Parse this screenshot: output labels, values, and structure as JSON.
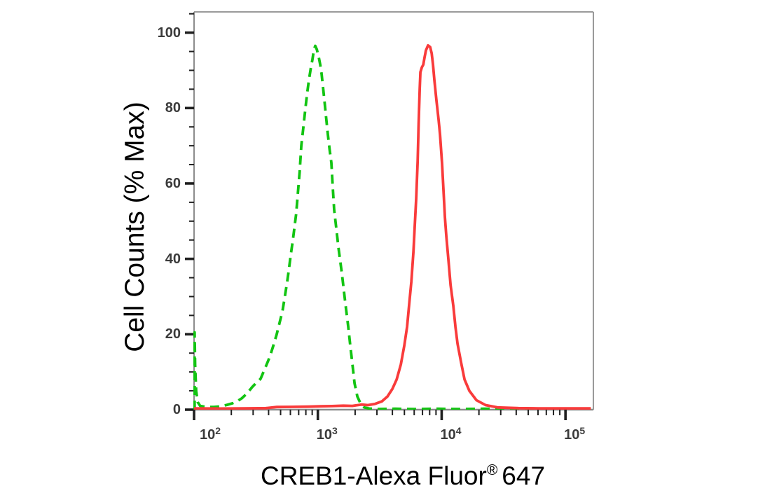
{
  "figure": {
    "background": "#ffffff",
    "frame_color": "#9a9a9a",
    "axis_line_color": "#8c8c8c",
    "tick_color": "#1f1f1f",
    "tick_label_color": "#3b3b3b",
    "title_color": "#000000"
  },
  "chart_data": {
    "type": "line",
    "subtype": "flow-cytometry-overlay-histogram",
    "title": "",
    "xlabel": "CREB1-Alexa Fluor® 647",
    "xlabel_parts": {
      "pre": "CREB1-Alexa Fluor",
      "registered": "®",
      "post": "647"
    },
    "ylabel": "Cell Counts (% Max)",
    "x_scale": "log",
    "xlim": [
      100,
      168000
    ],
    "ylim": [
      0,
      105.5
    ],
    "grid": false,
    "legend": "none",
    "x_ticks": [
      {
        "value": 100,
        "base": "10",
        "exp": "2"
      },
      {
        "value": 1000,
        "base": "10",
        "exp": "3"
      },
      {
        "value": 10000,
        "base": "10",
        "exp": "4"
      },
      {
        "value": 100000,
        "base": "10",
        "exp": "5"
      }
    ],
    "x_minor_mantissas": [
      2,
      3,
      4,
      5,
      6,
      7,
      8,
      9
    ],
    "y_ticks": [
      0,
      20,
      40,
      60,
      80,
      100
    ],
    "y_minor_step": 5,
    "series": [
      {
        "name": "green-dashed-histogram",
        "color": "#12c412",
        "style": "dashed",
        "line_width": 3.8,
        "dash": [
          13,
          8
        ],
        "peak": {
          "x": 950,
          "y": 96.5
        },
        "points": [
          [
            101,
            0
          ],
          [
            101,
            20.5
          ],
          [
            102,
            12
          ],
          [
            104,
            5
          ],
          [
            107,
            2
          ],
          [
            112,
            1
          ],
          [
            125,
            0.7
          ],
          [
            145,
            0.7
          ],
          [
            165,
            0.9
          ],
          [
            186,
            1.3
          ],
          [
            205,
            1.7
          ],
          [
            225,
            2.3
          ],
          [
            243,
            3
          ],
          [
            268,
            4.3
          ],
          [
            295,
            6
          ],
          [
            320,
            7.2
          ],
          [
            345,
            8.2
          ],
          [
            375,
            11
          ],
          [
            409,
            14
          ],
          [
            437,
            17
          ],
          [
            465,
            20
          ],
          [
            490,
            23
          ],
          [
            517,
            26
          ],
          [
            541,
            30
          ],
          [
            566,
            34
          ],
          [
            585,
            37.5
          ],
          [
            604,
            41
          ],
          [
            625,
            44.5
          ],
          [
            645,
            48
          ],
          [
            668,
            52
          ],
          [
            688,
            57
          ],
          [
            712,
            63
          ],
          [
            735,
            70
          ],
          [
            764,
            75
          ],
          [
            794,
            80
          ],
          [
            820,
            84
          ],
          [
            847,
            87.5
          ],
          [
            876,
            90.5
          ],
          [
            905,
            93
          ],
          [
            929,
            95.5
          ],
          [
            952,
            96.5
          ],
          [
            981,
            95.5
          ],
          [
            1017,
            93.5
          ],
          [
            1045,
            91.5
          ],
          [
            1072,
            89
          ],
          [
            1101,
            85.5
          ],
          [
            1130,
            82
          ],
          [
            1166,
            77.5
          ],
          [
            1205,
            73
          ],
          [
            1244,
            69
          ],
          [
            1286,
            65.5
          ],
          [
            1320,
            59
          ],
          [
            1355,
            53
          ],
          [
            1410,
            48
          ],
          [
            1466,
            43
          ],
          [
            1514,
            39.5
          ],
          [
            1564,
            36
          ],
          [
            1616,
            32
          ],
          [
            1670,
            28
          ],
          [
            1759,
            22
          ],
          [
            1828,
            17
          ],
          [
            1902,
            12
          ],
          [
            1978,
            7
          ],
          [
            2084,
            3.5
          ],
          [
            2223,
            1.5
          ],
          [
            2371,
            0.6
          ],
          [
            2600,
            0.3
          ],
          [
            3000,
            0.15
          ],
          [
            4200,
            0.25
          ],
          [
            6000,
            0.15
          ],
          [
            9000,
            0.25
          ],
          [
            14000,
            0.15
          ],
          [
            22000,
            0.25
          ],
          [
            35000,
            0.15
          ],
          [
            60000,
            0.25
          ],
          [
            100000,
            0.15
          ],
          [
            160000,
            0.2
          ]
        ]
      },
      {
        "name": "red-solid-histogram",
        "color": "#f93b3b",
        "style": "solid",
        "line_width": 3.8,
        "peak": {
          "x": 7800,
          "y": 96.6
        },
        "shoulder": {
          "x": 6800,
          "y": 91
        },
        "points": [
          [
            100,
            0.35
          ],
          [
            160,
            0.3
          ],
          [
            250,
            0.35
          ],
          [
            380,
            0.4
          ],
          [
            465,
            0.7
          ],
          [
            620,
            0.75
          ],
          [
            840,
            0.8
          ],
          [
            1050,
            0.9
          ],
          [
            1300,
            0.95
          ],
          [
            1607,
            1.05
          ],
          [
            1900,
            1.0
          ],
          [
            2254,
            1.35
          ],
          [
            2530,
            1.2
          ],
          [
            2880,
            1.5
          ],
          [
            3290,
            2.2
          ],
          [
            3650,
            3.5
          ],
          [
            4000,
            5.5
          ],
          [
            4330,
            8
          ],
          [
            4680,
            12
          ],
          [
            4990,
            17
          ],
          [
            5260,
            22
          ],
          [
            5470,
            28
          ],
          [
            5690,
            34
          ],
          [
            5920,
            42
          ],
          [
            6070,
            49
          ],
          [
            6230,
            56
          ],
          [
            6400,
            66
          ],
          [
            6520,
            76
          ],
          [
            6650,
            85
          ],
          [
            6730,
            89.5
          ],
          [
            6920,
            90.8
          ],
          [
            7100,
            91.5
          ],
          [
            7280,
            93.5
          ],
          [
            7460,
            95.3
          ],
          [
            7760,
            96.6
          ],
          [
            8070,
            96.2
          ],
          [
            8300,
            94.5
          ],
          [
            8510,
            91.5
          ],
          [
            8730,
            87.5
          ],
          [
            9080,
            82
          ],
          [
            9440,
            77
          ],
          [
            9700,
            73
          ],
          [
            10090,
            65
          ],
          [
            10350,
            58
          ],
          [
            10620,
            51
          ],
          [
            10910,
            46
          ],
          [
            11350,
            39.5
          ],
          [
            11800,
            33
          ],
          [
            12420,
            27.5
          ],
          [
            12920,
            22
          ],
          [
            13430,
            17.5
          ],
          [
            14350,
            12.5
          ],
          [
            15310,
            8
          ],
          [
            16750,
            5
          ],
          [
            19100,
            2.5
          ],
          [
            22640,
            1.2
          ],
          [
            28250,
            0.6
          ],
          [
            41780,
            0.4
          ],
          [
            60000,
            0.35
          ],
          [
            100000,
            0.35
          ],
          [
            160000,
            0.35
          ]
        ]
      }
    ]
  }
}
